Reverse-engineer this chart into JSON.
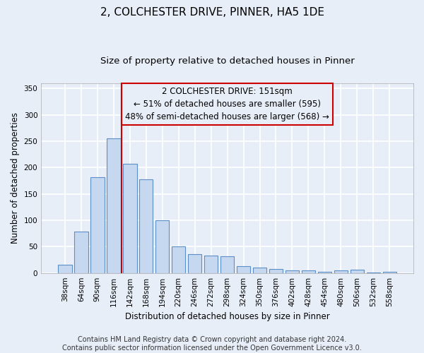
{
  "title1": "2, COLCHESTER DRIVE, PINNER, HA5 1DE",
  "title2": "Size of property relative to detached houses in Pinner",
  "xlabel": "Distribution of detached houses by size in Pinner",
  "ylabel": "Number of detached properties",
  "footnote1": "Contains HM Land Registry data © Crown copyright and database right 2024.",
  "footnote2": "Contains public sector information licensed under the Open Government Licence v3.0.",
  "categories": [
    "38sqm",
    "64sqm",
    "90sqm",
    "116sqm",
    "142sqm",
    "168sqm",
    "194sqm",
    "220sqm",
    "246sqm",
    "272sqm",
    "298sqm",
    "324sqm",
    "350sqm",
    "376sqm",
    "402sqm",
    "428sqm",
    "454sqm",
    "480sqm",
    "506sqm",
    "532sqm",
    "558sqm"
  ],
  "values": [
    15,
    78,
    182,
    255,
    207,
    177,
    100,
    50,
    36,
    33,
    32,
    13,
    10,
    8,
    5,
    5,
    2,
    5,
    6,
    1,
    2
  ],
  "bar_color": "#c5d8f0",
  "bar_edge_color": "#5b8fc5",
  "annotation_line1": "2 COLCHESTER DRIVE: 151sqm",
  "annotation_line2": "← 51% of detached houses are smaller (595)",
  "annotation_line3": "48% of semi-detached houses are larger (568) →",
  "annotation_box_edge_color": "#cc0000",
  "vline_x_index": 4.0,
  "vline_color": "#cc0000",
  "ylim": [
    0,
    360
  ],
  "yticks": [
    0,
    50,
    100,
    150,
    200,
    250,
    300,
    350
  ],
  "background_color": "#e8eef8",
  "grid_color": "#ffffff",
  "title1_fontsize": 11,
  "title2_fontsize": 9.5,
  "axis_label_fontsize": 8.5,
  "tick_fontsize": 7.5,
  "footnote_fontsize": 7
}
